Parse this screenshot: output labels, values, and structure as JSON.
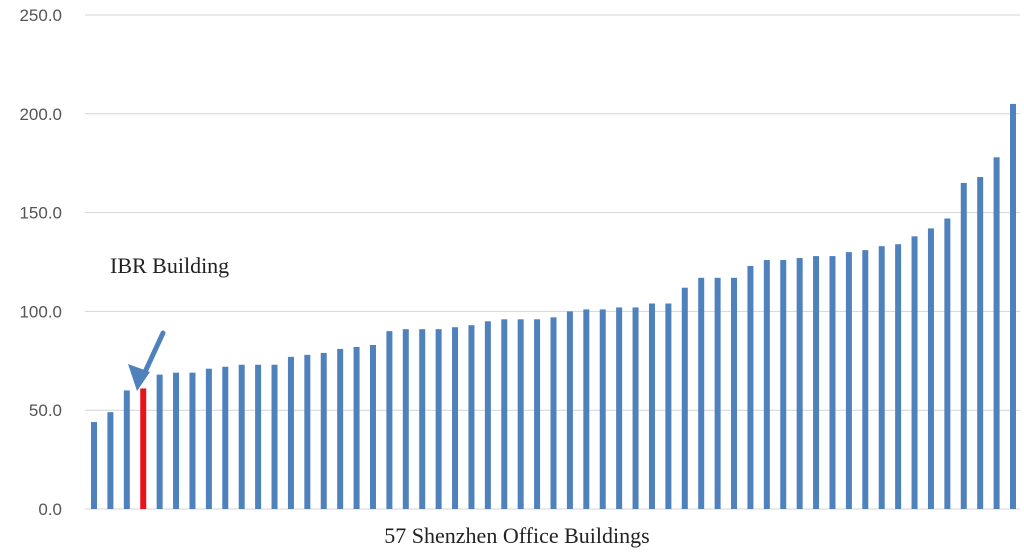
{
  "chart_data": {
    "type": "bar",
    "title": "",
    "xlabel": "57 Shenzhen Office Buildings",
    "ylabel": "",
    "ylim": [
      0,
      250
    ],
    "yticks": [
      "0.0",
      "50.0",
      "100.0",
      "150.0",
      "200.0",
      "250.0"
    ],
    "grid": true,
    "legend": "none",
    "bar_color": "#4F81BD",
    "highlight_color": "#E8141B",
    "highlight_index": 3,
    "annotation": {
      "text": "IBR Building",
      "target_index": 3,
      "arrow_color": "#4F81BD"
    },
    "values": [
      44,
      49,
      60,
      61,
      68,
      69,
      69,
      71,
      72,
      73,
      73,
      73,
      77,
      78,
      79,
      81,
      82,
      83,
      90,
      91,
      91,
      91,
      92,
      93,
      95,
      96,
      96,
      96,
      97,
      100,
      101,
      101,
      102,
      102,
      104,
      104,
      112,
      117,
      117,
      117,
      123,
      126,
      126,
      127,
      128,
      128,
      130,
      131,
      133,
      134,
      138,
      142,
      147,
      165,
      168,
      178,
      205
    ]
  }
}
